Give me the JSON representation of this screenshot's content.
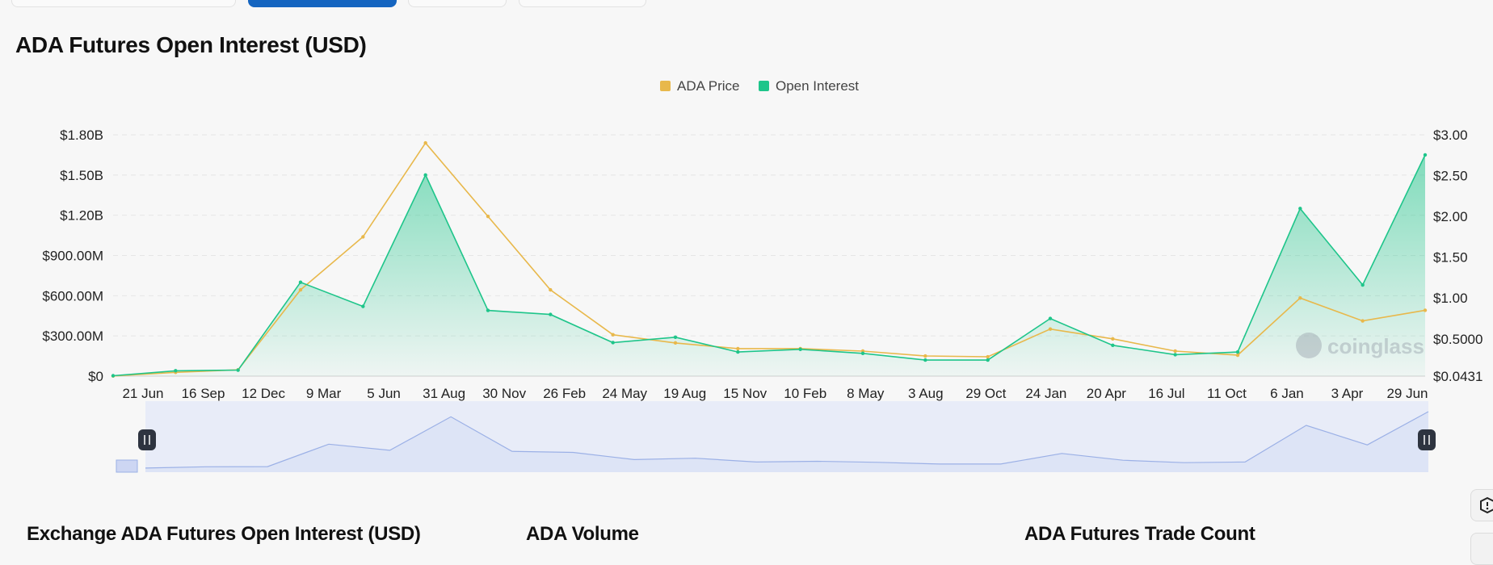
{
  "page": {
    "title": "ADA Futures Open Interest (USD)",
    "sections": [
      "Exchange ADA Futures Open Interest (USD)",
      "ADA Volume",
      "ADA Futures Trade Count"
    ]
  },
  "chart_data": {
    "type": "line",
    "title": "ADA Futures Open Interest (USD)",
    "legend_position": "top-center",
    "grid": true,
    "watermark": "coinglass",
    "x_tick_labels": [
      "21 Jun",
      "16 Sep",
      "12 Dec",
      "9 Mar",
      "5 Jun",
      "31 Aug",
      "30 Nov",
      "26 Feb",
      "24 May",
      "19 Aug",
      "15 Nov",
      "10 Feb",
      "8 May",
      "3 Aug",
      "29 Oct",
      "24 Jan",
      "20 Apr",
      "16 Jul",
      "11 Oct",
      "6 Jan",
      "3 Apr",
      "29 Jun"
    ],
    "y_left_ticks": [
      {
        "value": 0,
        "label": "$0"
      },
      {
        "value": 300000000,
        "label": "$300.00M"
      },
      {
        "value": 600000000,
        "label": "$600.00M"
      },
      {
        "value": 900000000,
        "label": "$900.00M"
      },
      {
        "value": 1200000000,
        "label": "$1.20B"
      },
      {
        "value": 1500000000,
        "label": "$1.50B"
      },
      {
        "value": 1800000000,
        "label": "$1.80B"
      }
    ],
    "y_right_ticks": [
      {
        "value": 0.0431,
        "label": "$0.0431"
      },
      {
        "value": 0.5,
        "label": "$0.5000"
      },
      {
        "value": 1.0,
        "label": "$1.00"
      },
      {
        "value": 1.5,
        "label": "$1.50"
      },
      {
        "value": 2.0,
        "label": "$2.00"
      },
      {
        "value": 2.5,
        "label": "$2.50"
      },
      {
        "value": 3.0,
        "label": "$3.00"
      }
    ],
    "ylim_left": [
      0,
      1800000000
    ],
    "ylim_right": [
      0.0431,
      3.0
    ],
    "x": [
      "21 Jun",
      "16 Sep",
      "12 Dec",
      "9 Mar",
      "5 Jun",
      "31 Aug",
      "30 Nov",
      "26 Feb",
      "24 May",
      "19 Aug",
      "15 Nov",
      "10 Feb",
      "8 May",
      "3 Aug",
      "29 Oct",
      "24 Jan",
      "20 Apr",
      "16 Jul",
      "11 Oct",
      "6 Jan",
      "3 Apr",
      "29 Jun"
    ],
    "series": [
      {
        "name": "ADA Price",
        "axis": "right",
        "color": "#e8b84b",
        "values": [
          0.045,
          0.09,
          0.12,
          1.1,
          1.75,
          2.9,
          2.0,
          1.1,
          0.55,
          0.45,
          0.38,
          0.38,
          0.35,
          0.29,
          0.28,
          0.62,
          0.5,
          0.35,
          0.3,
          1.0,
          0.72,
          0.85
        ]
      },
      {
        "name": "Open Interest",
        "axis": "left",
        "color": "#1ec58a",
        "values": [
          3000000,
          40000000,
          45000000,
          700000000,
          520000000,
          1500000000,
          490000000,
          460000000,
          250000000,
          290000000,
          180000000,
          200000000,
          170000000,
          120000000,
          120000000,
          430000000,
          230000000,
          160000000,
          180000000,
          1250000000,
          680000000,
          1650000000
        ]
      }
    ],
    "navigator": {
      "fill": "#dde4f6",
      "line": "#9bb0e6"
    }
  }
}
